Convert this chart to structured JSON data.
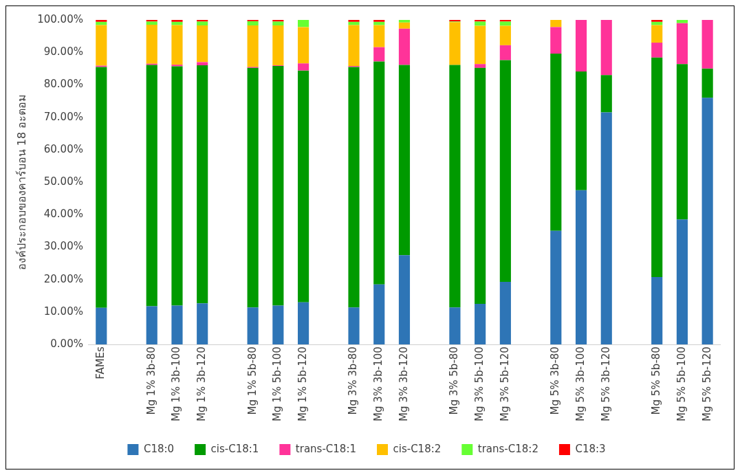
{
  "chart_data": {
    "type": "bar",
    "stacked": true,
    "ylabel": "องค์ประกอบของคาร์บอน 18 อะตอม",
    "categories": [
      "FAMEs",
      null,
      "Mg 1% 3b-80",
      "Mg 1% 3b-100",
      "Mg 1% 3b-120",
      null,
      "Mg 1% 5b-80",
      "Mg 1% 5b-100",
      "Mg 1% 5b-120",
      null,
      "Mg 3% 3b-80",
      "Mg 3% 3b-100",
      "Mg 3% 3b-120",
      null,
      "Mg 3% 5b-80",
      "Mg 3% 5b-100",
      "Mg 3% 5b-120",
      null,
      "Mg 5% 3b-80",
      "Mg 5% 3b-100",
      "Mg 5% 3b-120",
      null,
      "Mg 5% 5b-80",
      "Mg 5% 5b-100",
      "Mg 5% 5b-120"
    ],
    "series": [
      {
        "name": "C18:0",
        "color": "#2e75b6",
        "values": [
          11.3,
          null,
          11.8,
          12,
          12.7,
          null,
          11.4,
          12,
          13,
          null,
          11.4,
          18.5,
          27.5,
          null,
          11.4,
          12.5,
          19.3,
          null,
          35,
          47.5,
          71.5,
          null,
          20.8,
          38.5,
          76
        ]
      },
      {
        "name": "cis-C18:1",
        "color": "#009a00",
        "values": [
          74.2,
          null,
          74.3,
          73.7,
          73.3,
          null,
          73.8,
          73.8,
          71.4,
          null,
          74.1,
          68.7,
          58.6,
          null,
          74.7,
          72.7,
          68.3,
          null,
          54.6,
          36.6,
          11.5,
          null,
          67.6,
          47.9,
          9
        ]
      },
      {
        "name": "trans-C18:1",
        "color": "#ff3399",
        "values": [
          0.4,
          null,
          0.4,
          0.5,
          1,
          null,
          0.3,
          0.2,
          2.2,
          null,
          0.3,
          4.4,
          11.2,
          null,
          null,
          1.2,
          4.6,
          null,
          8.2,
          15.9,
          17,
          null,
          4.6,
          12.6,
          15
        ]
      },
      {
        "name": "cis-C18:2",
        "color": "#ffc000",
        "values": [
          12.5,
          null,
          12,
          12.2,
          11.3,
          null,
          12.8,
          12.3,
          11.2,
          null,
          12.6,
          6.8,
          1.9,
          null,
          13.2,
          11.8,
          6,
          null,
          2.2,
          0,
          0,
          null,
          5.4,
          0,
          0
        ]
      },
      {
        "name": "trans-C18:2",
        "color": "#66ff33",
        "values": [
          1,
          null,
          1,
          1,
          1.2,
          null,
          1.3,
          1.2,
          2.2,
          null,
          1,
          1,
          0.8,
          null,
          0.2,
          1.3,
          1.3,
          null,
          0,
          0,
          0,
          null,
          1,
          1,
          0
        ]
      },
      {
        "name": "C18:3",
        "color": "#ff0000",
        "values": [
          0.6,
          null,
          0.5,
          0.6,
          0.5,
          null,
          0.4,
          0.5,
          0,
          null,
          0.6,
          0.6,
          0,
          null,
          0.5,
          0.5,
          0.5,
          null,
          0,
          0,
          0,
          null,
          0.6,
          0,
          0
        ]
      }
    ],
    "ylim": [
      0,
      100
    ],
    "yticks": [
      {
        "value": 0,
        "label": "0.00%"
      },
      {
        "value": 10,
        "label": "10.00%"
      },
      {
        "value": 20,
        "label": "20.00%"
      },
      {
        "value": 30,
        "label": "30.00%"
      },
      {
        "value": 40,
        "label": "40.00%"
      },
      {
        "value": 50,
        "label": "50.00%"
      },
      {
        "value": 60,
        "label": "60.00%"
      },
      {
        "value": 70,
        "label": "70.00%"
      },
      {
        "value": 80,
        "label": "80.00%"
      },
      {
        "value": 90,
        "label": "90.00%"
      },
      {
        "value": 100,
        "label": "100.00%"
      }
    ],
    "grid": false,
    "legend": "bottom"
  }
}
